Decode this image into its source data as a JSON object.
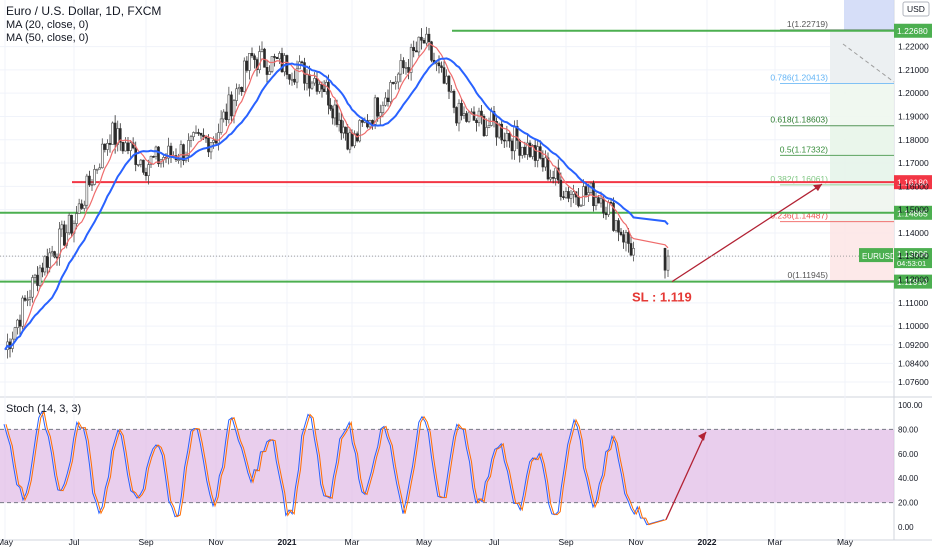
{
  "header": {
    "symbol_title": "Euro / U.S. Dollar, 1D, FXCM",
    "ma20_label": "MA (20, close, 0)",
    "ma50_label": "MA (50, close, 0)",
    "stoch_label": "Stoch (14, 3, 3)",
    "currency_button": "USD"
  },
  "annotations": {
    "stop_loss": "SL : 1.119",
    "price_tag_symbol": "EURUSD",
    "price_tag_value": "1.13006",
    "price_tag_countdown": "04:53:01"
  },
  "colors": {
    "green_line": "#4caf50",
    "red_line": "#f23645",
    "ma20": "#ef6c6c",
    "ma50": "#2962ff",
    "arrow": "#b22234",
    "stoch_band": "#e1bee7"
  },
  "chart_data": [
    {
      "type": "line",
      "title": "Euro / U.S. Dollar, 1D, FXCM",
      "x_ticks": [
        "May",
        "Jul",
        "Sep",
        "Nov",
        "2021",
        "Mar",
        "May",
        "Jul",
        "Sep",
        "Nov",
        "2022",
        "Mar",
        "May"
      ],
      "y_ticks": [
        1.076,
        1.084,
        1.092,
        1.1,
        1.11,
        1.12,
        1.13,
        1.14,
        1.15,
        1.16,
        1.17,
        1.18,
        1.19,
        1.2,
        1.21,
        1.22
      ],
      "ylim": [
        1.07,
        1.24
      ],
      "horizontal_levels": [
        {
          "value": 1.2268,
          "label": "1.22680",
          "color": "#4caf50"
        },
        {
          "value": 1.1618,
          "label": "1.16180",
          "color": "#f23645"
        },
        {
          "value": 1.14865,
          "label": "1.14865",
          "color": "#4caf50"
        },
        {
          "value": 1.1191,
          "label": "1.11910",
          "color": "#4caf50"
        }
      ],
      "fibonacci": [
        {
          "ratio": "1",
          "value": 1.22719,
          "label": "1(1.22719)"
        },
        {
          "ratio": "0.786",
          "value": 1.20413,
          "label": "0.786(1.20413)"
        },
        {
          "ratio": "0.618",
          "value": 1.18603,
          "label": "0.618(1.18603)"
        },
        {
          "ratio": "0.5",
          "value": 1.17332,
          "label": "0.5(1.17332)"
        },
        {
          "ratio": "0.382",
          "value": 1.16061,
          "label": "0.382(1.16061)"
        },
        {
          "ratio": "0.236",
          "value": 1.14487,
          "label": "0.236(1.14487)"
        },
        {
          "ratio": "0",
          "value": 1.11945,
          "label": "0(1.11945)"
        }
      ],
      "current_price": 1.13006,
      "price_series": [
        {
          "date": "2020-05",
          "close": 1.09
        },
        {
          "date": "2020-06",
          "close": 1.125
        },
        {
          "date": "2020-07",
          "close": 1.145
        },
        {
          "date": "2020-08",
          "close": 1.183
        },
        {
          "date": "2020-09",
          "close": 1.17
        },
        {
          "date": "2020-10",
          "close": 1.175
        },
        {
          "date": "2020-11",
          "close": 1.182
        },
        {
          "date": "2020-12",
          "close": 1.215
        },
        {
          "date": "2021-01",
          "close": 1.212
        },
        {
          "date": "2021-02",
          "close": 1.205
        },
        {
          "date": "2021-03",
          "close": 1.178
        },
        {
          "date": "2021-04",
          "close": 1.202
        },
        {
          "date": "2021-05",
          "close": 1.222
        },
        {
          "date": "2021-06",
          "close": 1.19
        },
        {
          "date": "2021-07",
          "close": 1.186
        },
        {
          "date": "2021-08",
          "close": 1.176
        },
        {
          "date": "2021-09",
          "close": 1.158
        },
        {
          "date": "2021-10",
          "close": 1.156
        },
        {
          "date": "2021-11",
          "close": 1.13
        }
      ],
      "series": [
        {
          "name": "MA (20, close, 0)",
          "color": "#ef6c6c"
        },
        {
          "name": "MA (50, close, 0)",
          "color": "#2962ff"
        }
      ]
    },
    {
      "type": "line",
      "title": "Stoch (14, 3, 3)",
      "y_ticks": [
        0,
        20,
        40,
        60,
        80,
        100
      ],
      "y_tick_labels": [
        "0.00",
        "20.00",
        "40.00",
        "60.00",
        "80.00",
        "100.00"
      ],
      "ylim": [
        0,
        100
      ],
      "bands": [
        20,
        80
      ],
      "k_series": [
        80,
        25,
        90,
        30,
        85,
        15,
        75,
        20,
        70,
        10,
        80,
        20,
        88,
        40,
        75,
        10,
        90,
        20,
        85,
        30,
        80,
        15,
        90,
        25,
        85,
        20,
        70,
        15,
        60,
        10,
        85,
        20,
        70,
        15,
        5
      ]
    }
  ]
}
